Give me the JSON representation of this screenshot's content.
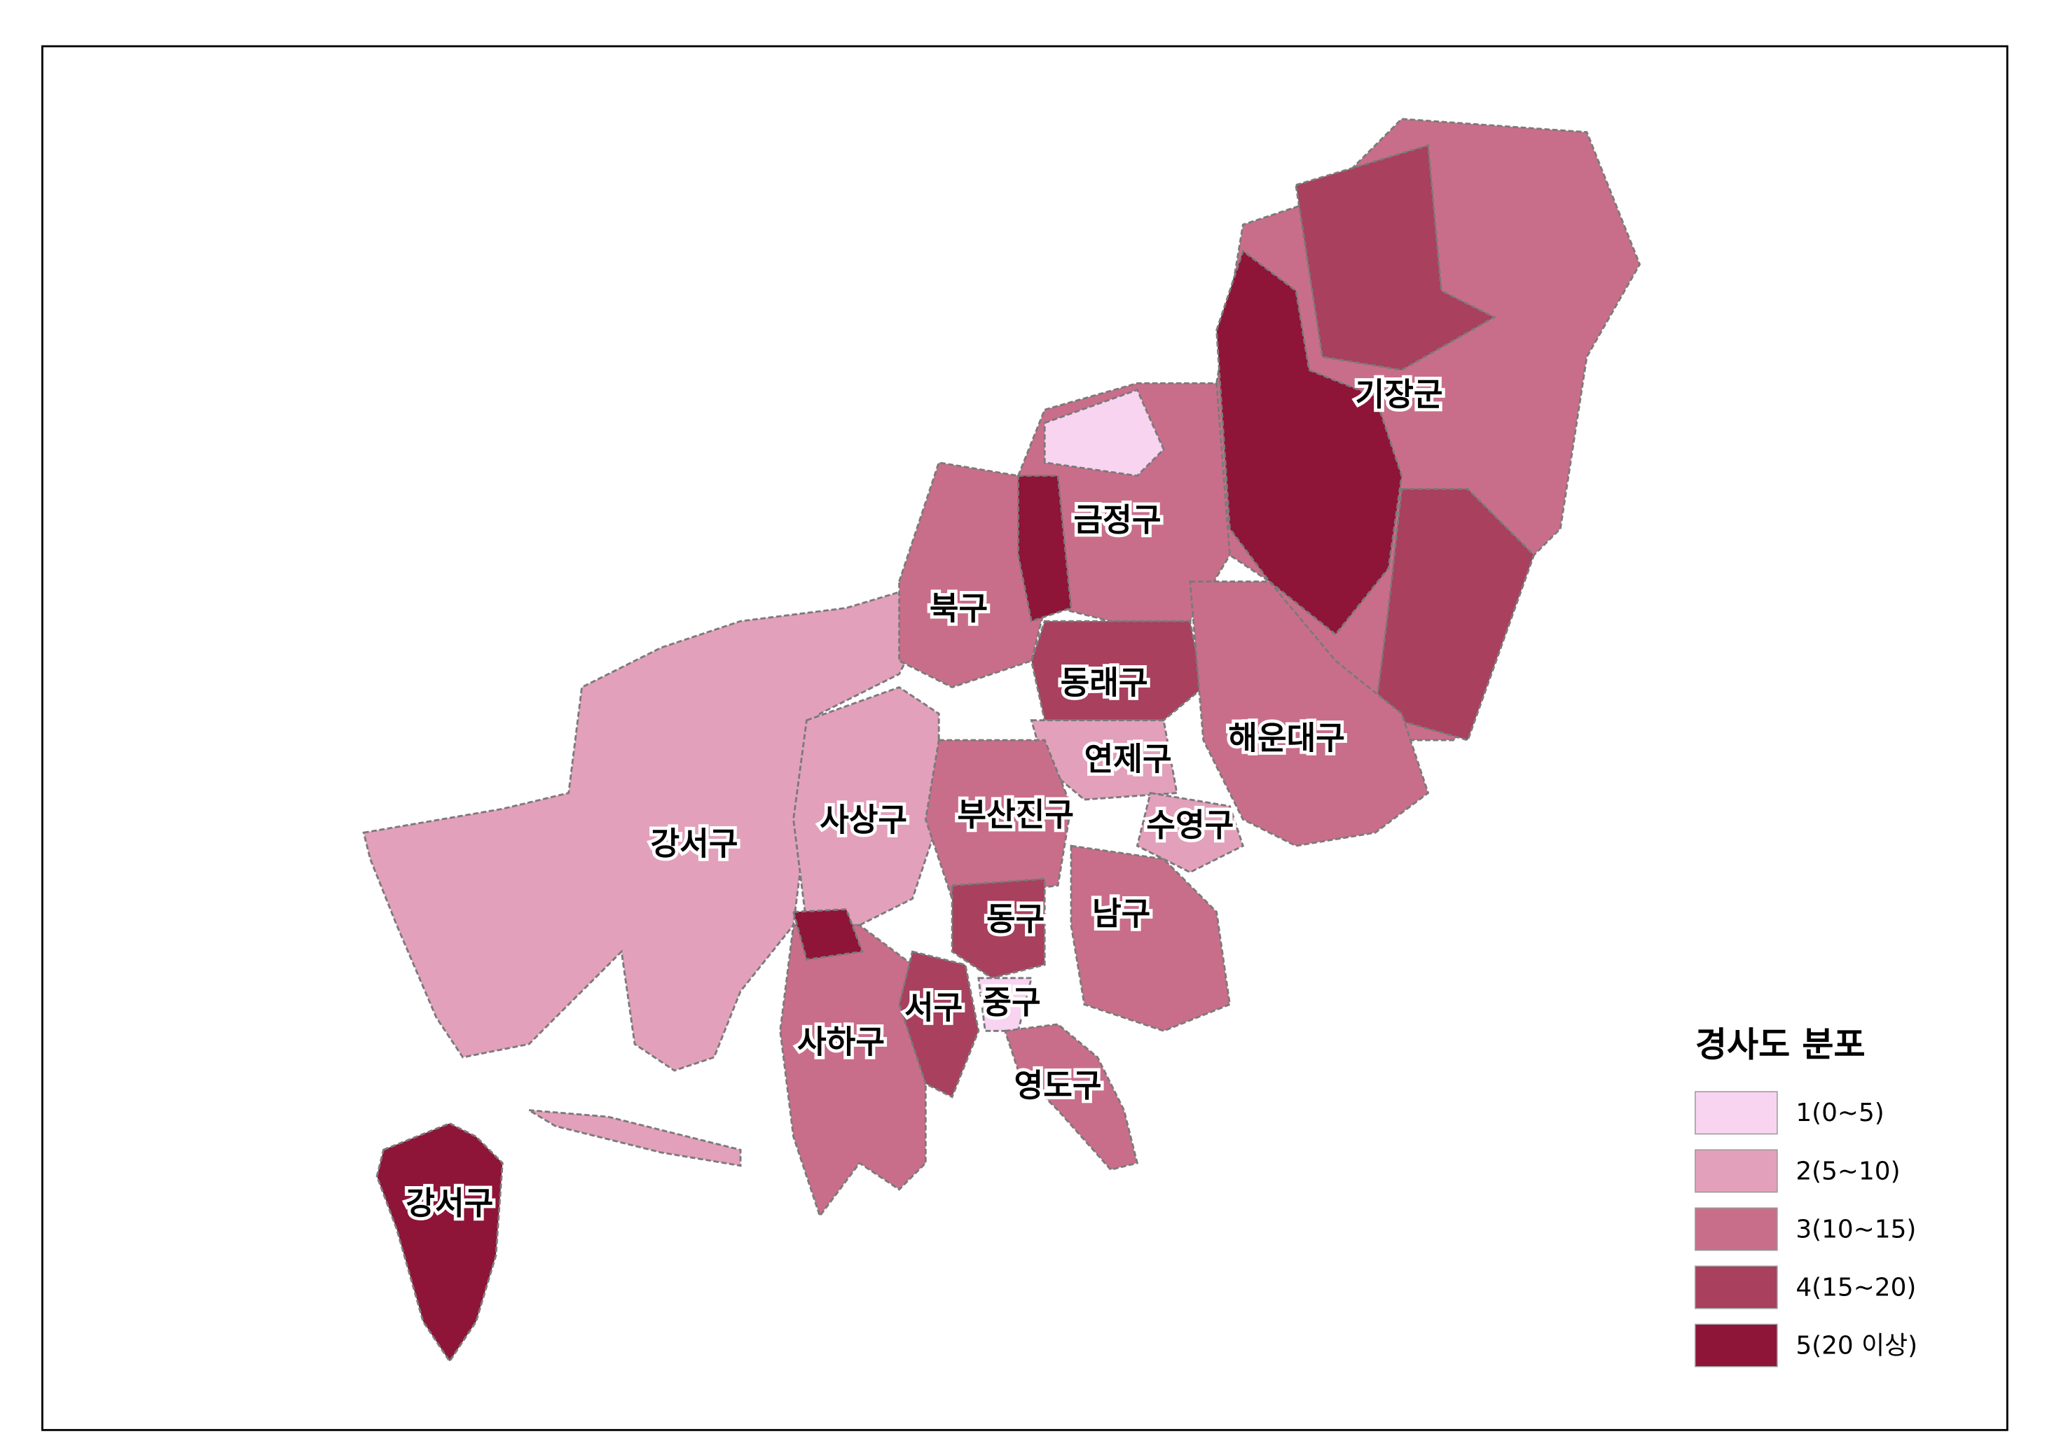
{
  "map": {
    "labels": [
      "기장군",
      "금정구",
      "북구",
      "동래구",
      "해운대구",
      "연제구",
      "사상구",
      "부산진구",
      "수영구",
      "강서구",
      "동구",
      "남구",
      "서구",
      "중구",
      "사하구",
      "영도구",
      "강서구"
    ],
    "legend": {
      "title": "경사도 분포",
      "items": [
        {
          "label": "1(0~5)",
          "color": "#f8d4f1"
        },
        {
          "label": "2(5~10)",
          "color": "#e3a0bb"
        },
        {
          "label": "3(10~15)",
          "color": "#c96e8a"
        },
        {
          "label": "4(15~20)",
          "color": "#a8405e"
        },
        {
          "label": "5(20 이상)",
          "color": "#8e1438"
        }
      ]
    }
  }
}
